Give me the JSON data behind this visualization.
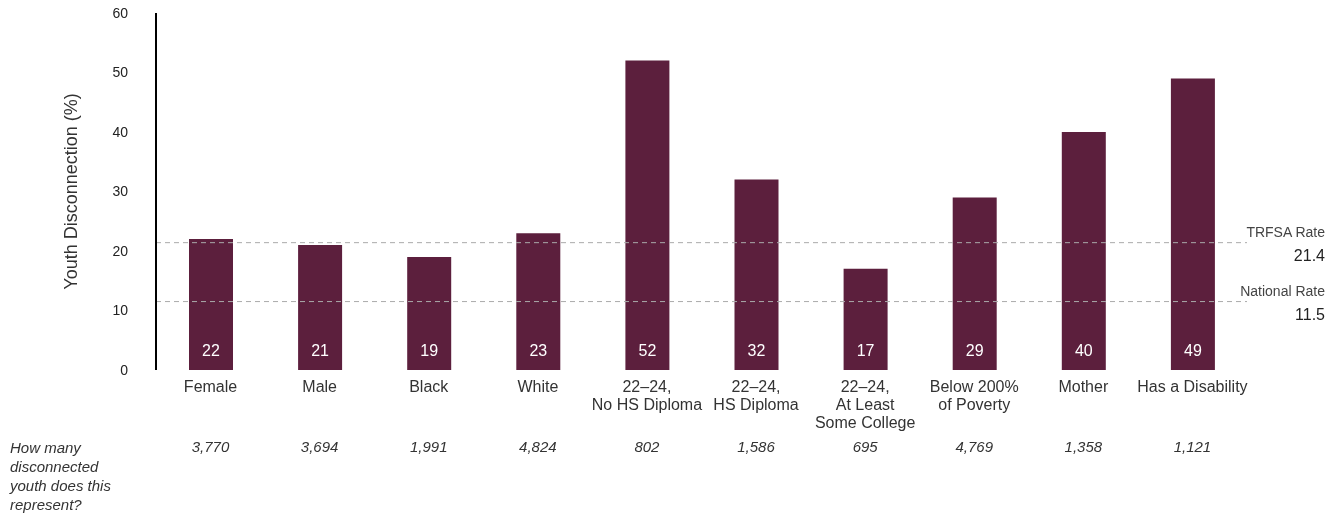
{
  "chart_data": {
    "type": "bar",
    "ylabel": "Youth Disconnection (%)",
    "categories": [
      "Female",
      "Male",
      "Black",
      "White",
      "22–24,\nNo HS Diploma",
      "22–24,\nHS Diploma",
      "22–24,\nAt Least\nSome College",
      "Below 200%\nof Poverty",
      "Mother",
      "Has a Disability"
    ],
    "values": [
      22,
      21,
      19,
      23,
      52,
      32,
      17,
      29,
      40,
      49
    ],
    "color": "#5c1f3d",
    "ylim": [
      0,
      60
    ],
    "yticks": [
      0,
      10,
      20,
      30,
      40,
      50,
      60
    ],
    "data_labels": true,
    "ref_lines": [
      {
        "axis": "y",
        "value": 21.4,
        "label": "TRFSA Rate\n21.4",
        "color": "#aaaaaa",
        "line_style": "dashed"
      },
      {
        "axis": "y",
        "value": 11.5,
        "label": "National Rate\n11.5",
        "color": "#aaaaaa",
        "line_style": "dashed"
      }
    ],
    "annotations": [
      "How many\ndisconnected\nyouth does this\nrepresent?",
      "3,770",
      "3,694",
      "1,991",
      "4,824",
      "802",
      "1,586",
      "695",
      "4,769",
      "1,358",
      "1,121"
    ]
  }
}
